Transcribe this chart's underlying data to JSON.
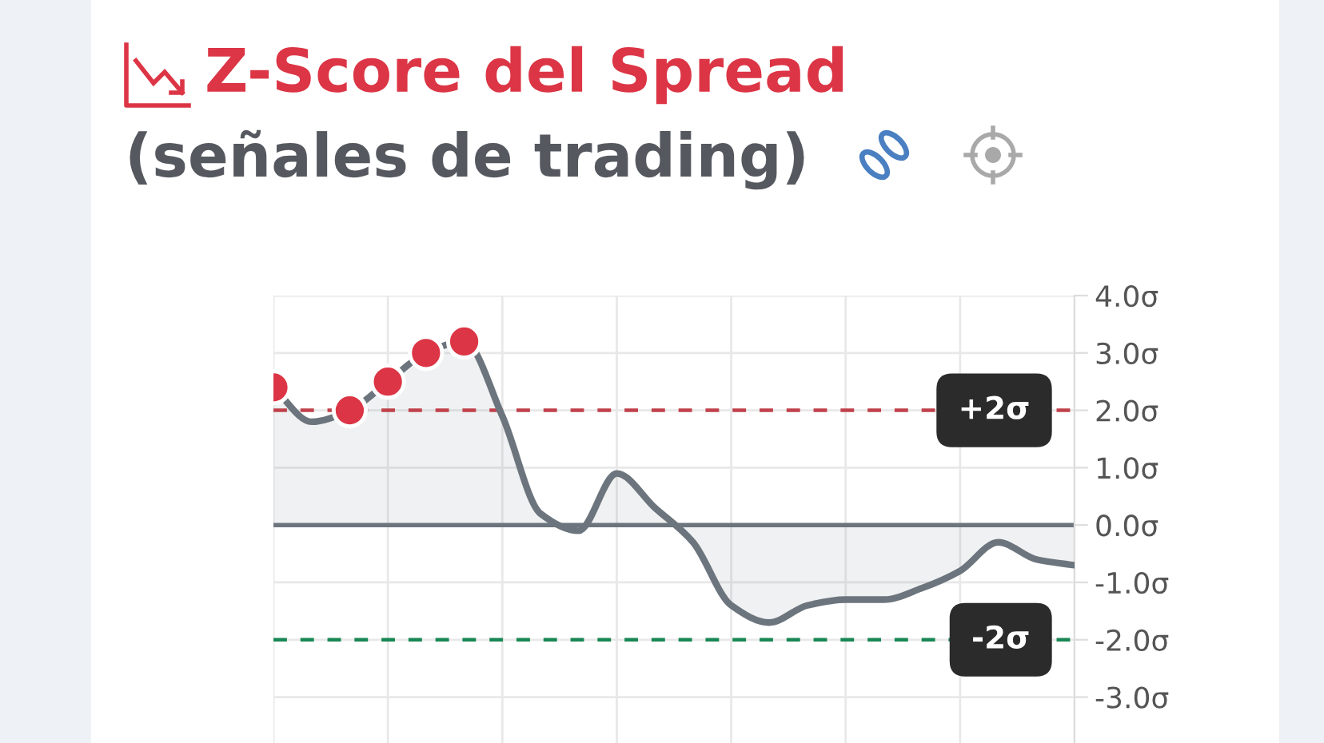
{
  "chart_data": {
    "type": "area",
    "title": "Z-Score del Spread",
    "subtitle": "(señales de trading)",
    "categories": [
      null,
      null,
      null,
      null,
      null,
      null,
      null,
      null,
      null,
      null,
      null,
      null,
      null,
      null,
      null,
      null,
      null,
      null,
      null,
      null,
      null,
      null
    ],
    "series": [
      {
        "color": "#6c757d",
        "values": [
          2.4,
          1.8,
          2.0,
          2.5,
          3.0,
          3.2,
          1.9,
          0.2,
          -0.1,
          0.9,
          0.3,
          -0.3,
          -1.4,
          -1.7,
          -1.4,
          -1.3,
          -1.3,
          -1.1,
          -0.8,
          -0.3,
          -0.6,
          -0.7
        ]
      },
      {
        "type": "scatter",
        "color": "#dc3545",
        "marker": "circle",
        "values": [
          2.4,
          null,
          2.0,
          2.5,
          3.0,
          3.2,
          null,
          null,
          null,
          null,
          null,
          null,
          null,
          null,
          null,
          null,
          null,
          null,
          null,
          null,
          null,
          null
        ]
      }
    ],
    "ylim": [
      -3.8,
      4.0
    ],
    "yticks": [
      {
        "value": 4,
        "label": "4.0σ"
      },
      {
        "value": 3,
        "label": "3.0σ"
      },
      {
        "value": 2,
        "label": "2.0σ"
      },
      {
        "value": 1,
        "label": "1.0σ"
      },
      {
        "value": 0,
        "label": "0.0σ"
      },
      {
        "value": -1,
        "label": "-1.0σ"
      },
      {
        "value": -2,
        "label": "-2.0σ"
      },
      {
        "value": -3,
        "label": "-3.0σ"
      }
    ],
    "ref_lines": [
      {
        "axis": "y",
        "value": 0,
        "color": "#6c757d",
        "line_style": "solid"
      },
      {
        "axis": "y",
        "value": 2,
        "label": "+2σ",
        "color": "#c0414b",
        "line_style": "dashed"
      },
      {
        "axis": "y",
        "value": -2,
        "label": "-2σ",
        "color": "#198754",
        "line_style": "dashed"
      }
    ],
    "grid": true,
    "tick_labels": "y"
  }
}
